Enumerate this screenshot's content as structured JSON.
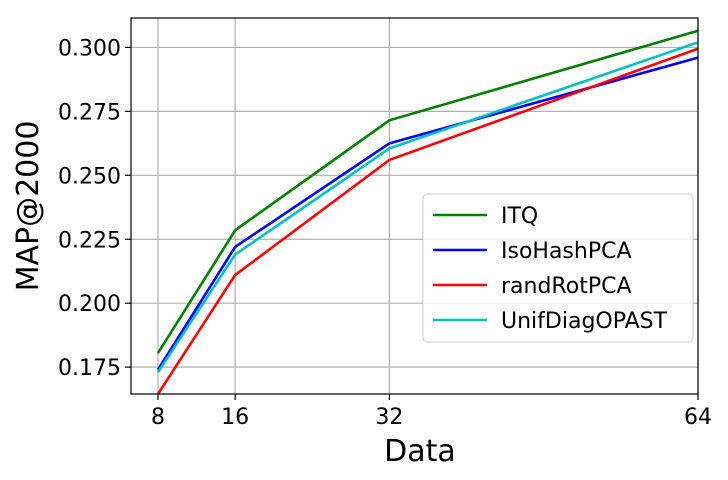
{
  "chart_data": {
    "type": "line",
    "xlabel": "Data",
    "ylabel": "MAP@2000",
    "x": [
      8,
      16,
      32,
      64
    ],
    "x_ticks": [
      "8",
      "16",
      "32",
      "64"
    ],
    "xlim": [
      5.2,
      64.0
    ],
    "ylim": [
      0.1645,
      0.3115
    ],
    "y_ticks": [
      "0.175",
      "0.200",
      "0.225",
      "0.250",
      "0.275",
      "0.300"
    ],
    "grid": true,
    "legend_position": "lower right",
    "series": [
      {
        "name": "ITQ",
        "color": "#008000",
        "values": [
          0.1805,
          0.2285,
          0.2715,
          0.3065
        ]
      },
      {
        "name": "IsoHashPCA",
        "color": "#0000ff",
        "values": [
          0.174,
          0.222,
          0.2625,
          0.296
        ]
      },
      {
        "name": "randRotPCA",
        "color": "#ff0000",
        "values": [
          0.1645,
          0.211,
          0.256,
          0.2995
        ]
      },
      {
        "name": "UnifDiagOPAST",
        "color": "#00bfbf",
        "values": [
          0.173,
          0.219,
          0.2605,
          0.302
        ]
      }
    ]
  }
}
